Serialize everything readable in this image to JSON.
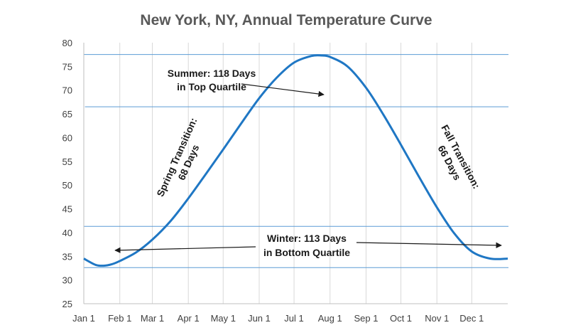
{
  "chart_data": {
    "type": "line",
    "title": "New York, NY, Annual Temperature Curve",
    "xlabel": "",
    "ylabel": "",
    "x_tick_labels": [
      "Jan 1",
      "Feb 1",
      "Mar 1",
      "Apr 1",
      "May 1",
      "Jun 1",
      "Jul 1",
      "Aug 1",
      "Sep 1",
      "Oct 1",
      "Nov 1",
      "Dec 1"
    ],
    "x_tick_days": [
      0,
      31,
      59,
      90,
      120,
      151,
      181,
      212,
      243,
      273,
      304,
      334
    ],
    "xlim": [
      0,
      365
    ],
    "ylim": [
      25,
      80
    ],
    "y_ticks": [
      25,
      30,
      35,
      40,
      45,
      50,
      55,
      60,
      65,
      70,
      75,
      80
    ],
    "grid": "vertical gridlines at month starts",
    "series": [
      {
        "color": "#1f77c4",
        "x_days": [
          0,
          10,
          17,
          24,
          31,
          45,
          59,
          75,
          90,
          105,
          120,
          135,
          151,
          166,
          181,
          196,
          205,
          212,
          227,
          243,
          258,
          273,
          288,
          304,
          319,
          334,
          350,
          365
        ],
        "y": [
          34.5,
          33.2,
          33.0,
          33.3,
          34.0,
          35.8,
          38.5,
          42.5,
          47.2,
          52.3,
          57.5,
          62.8,
          68.3,
          72.6,
          75.8,
          77.2,
          77.3,
          77.0,
          75.0,
          70.5,
          64.8,
          58.5,
          52.0,
          45.3,
          39.8,
          36.0,
          34.5,
          34.5
        ]
      }
    ],
    "reference_lines": [
      {
        "y": 77.5,
        "x_start_day": 0,
        "color": "#5b9bd5"
      },
      {
        "y": 66.5,
        "x_start_day": 1,
        "color": "#5b9bd5"
      },
      {
        "y": 41.3,
        "x_start_day": 0,
        "color": "#5b9bd5"
      },
      {
        "y": 32.6,
        "x_start_day": 0,
        "color": "#5b9bd5"
      }
    ],
    "annotations": [
      {
        "lines": [
          "Summer: 118 Days",
          "in Top Quartile"
        ]
      },
      {
        "lines": [
          "Spring Transition:",
          "68 Days"
        ]
      },
      {
        "lines": [
          "Fall Transition:",
          "66 Days"
        ]
      },
      {
        "lines": [
          "Winter: 113 Days",
          "in Bottom Quartile"
        ]
      }
    ]
  },
  "colors": {
    "series": "#1f77c4",
    "reference": "#5b9bd5",
    "grid": "#d9d9d9",
    "axis": "#bfbfbf",
    "text": "#404040",
    "title": "#595959"
  }
}
